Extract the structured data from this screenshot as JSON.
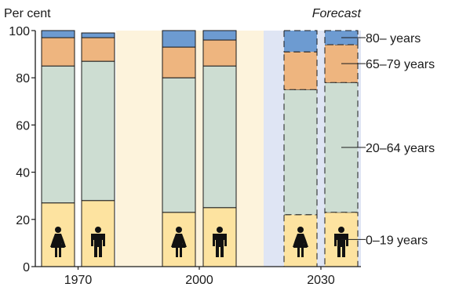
{
  "chart_data": {
    "type": "bar",
    "stacked": true,
    "y_unit_label": "Per cent",
    "forecast_label": "Forecast",
    "ylim": [
      0,
      100
    ],
    "y_ticks": [
      "0",
      "20",
      "40",
      "60",
      "80",
      "100"
    ],
    "groups": [
      {
        "label": "1970",
        "forecast": false
      },
      {
        "label": "2000",
        "forecast": false
      },
      {
        "label": "2030",
        "forecast": true
      }
    ],
    "sexes": [
      "female",
      "male"
    ],
    "bars": [
      {
        "group": 0,
        "sex": "female",
        "values": [
          27,
          58,
          12,
          3
        ]
      },
      {
        "group": 0,
        "sex": "male",
        "values": [
          28,
          59,
          10,
          2
        ]
      },
      {
        "group": 1,
        "sex": "female",
        "values": [
          23,
          57,
          13,
          7
        ]
      },
      {
        "group": 1,
        "sex": "male",
        "values": [
          25,
          60,
          11,
          4
        ]
      },
      {
        "group": 2,
        "sex": "female",
        "values": [
          22,
          53,
          16,
          9
        ]
      },
      {
        "group": 2,
        "sex": "male",
        "values": [
          23,
          55,
          16,
          6
        ]
      }
    ],
    "series": [
      {
        "name": "0–19 years",
        "color": "#fde3a0"
      },
      {
        "name": "20–64 years",
        "color": "#cdddd2"
      },
      {
        "name": "65–79 years",
        "color": "#eeb57f"
      },
      {
        "name": "80– years",
        "color": "#6d9bd1"
      }
    ],
    "colors": {
      "band_light": "#fdf3dc",
      "band_forecast": "#dfe5f4",
      "axis": "#1a1a1a",
      "figure": "#111111"
    },
    "legend_placement": "right, beside last bar",
    "grid": false
  }
}
